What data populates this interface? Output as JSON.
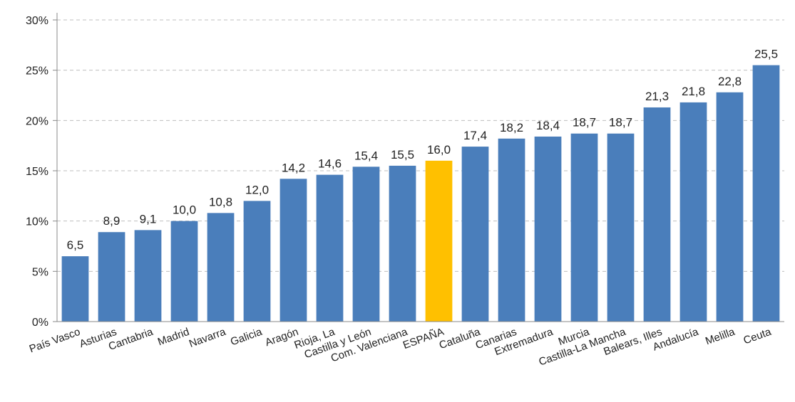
{
  "chart_data": {
    "type": "bar",
    "title": "",
    "xlabel": "",
    "ylabel": "",
    "ylim": [
      0,
      30
    ],
    "y_ticks": [
      "0%",
      "5%",
      "10%",
      "15%",
      "20%",
      "25%",
      "30%"
    ],
    "y_tick_values": [
      0,
      5,
      10,
      15,
      20,
      25,
      30
    ],
    "grid": true,
    "categories": [
      "País Vasco",
      "Asturias",
      "Cantabria",
      "Madrid",
      "Navarra",
      "Galicia",
      "Aragón",
      "Rioja, La",
      "Castilla y León",
      "Com. Valenciana",
      "ESPAÑA",
      "Cataluña",
      "Canarias",
      "Extremadura",
      "Murcia",
      "Castilla-La Mancha",
      "Balears, Illes",
      "Andalucía",
      "Melilla",
      "Ceuta"
    ],
    "values": [
      6.5,
      8.9,
      9.1,
      10.0,
      10.8,
      12.0,
      14.2,
      14.6,
      15.4,
      15.5,
      16.0,
      17.4,
      18.2,
      18.4,
      18.7,
      18.7,
      21.3,
      21.8,
      22.8,
      25.5
    ],
    "value_labels": [
      "6,5",
      "8,9",
      "9,1",
      "10,0",
      "10,8",
      "12,0",
      "14,2",
      "14,6",
      "15,4",
      "15,5",
      "16,0",
      "17,4",
      "18,2",
      "18,4",
      "18,7",
      "18,7",
      "21,3",
      "21,8",
      "22,8",
      "25,5"
    ],
    "bar_color": "#4a7ebb",
    "highlight_color": "#ffc000",
    "highlight_category": "ESPAÑA"
  }
}
